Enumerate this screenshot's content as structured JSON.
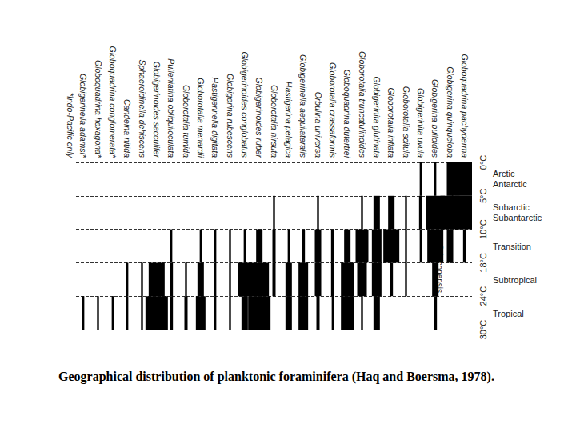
{
  "chart_data": {
    "type": "kite",
    "title": "Geographical distribution of planktonic foraminifera (Haq and Boersma, 1978).",
    "categories": [
      "Globigerinella adamsi*",
      "Globoquadrina hexagona*",
      "Globoquadrina conglomerata*",
      "Candeina nitida",
      "Sphaeroidinella dehiscens",
      "Globigerinoides sacculifer",
      "Pulleniatina obliquiloculata",
      "Globorotalia tumida",
      "Globorotalia menardii",
      "Hastigerinella digitata",
      "Globigerina rubescens",
      "Globigerinoides conglobatus",
      "Globigerinoides ruber",
      "Globorotalia hirsuta",
      "Hastigerina pelagica",
      "Globigerinella aequilateralis",
      "Orbulina universa",
      "Globorotalia crassaformis",
      "Globoquadrina dutertrei",
      "Globorotalia truncatulinoides",
      "Globigerinita glutinata",
      "Globorotalia inflata",
      "Globorotalia scitula",
      "Globigerinita uvula",
      "Globigerina bulloides",
      "Globigerina quinqueloba",
      "Globoquadrina pachyderma"
    ],
    "zones": [
      {
        "label": "Arctic\nAntarctic",
        "from": 0,
        "to": 1
      },
      {
        "label": "Subarctic\nSubantarctic",
        "from": 1,
        "to": 2
      },
      {
        "label": "Transition",
        "from": 2,
        "to": 3
      },
      {
        "label": "Subtropical",
        "from": 3,
        "to": 4
      },
      {
        "label": "Tropical",
        "from": 4,
        "to": 5
      }
    ],
    "values": [
      [
        0,
        0,
        0,
        0,
        0.3
      ],
      [
        0,
        0,
        0,
        0,
        0.3
      ],
      [
        0,
        0,
        0,
        0,
        0.3
      ],
      [
        0,
        0,
        0,
        0.3,
        0.3
      ],
      [
        0,
        0,
        0,
        0.3,
        0.3
      ],
      [
        0,
        0,
        0,
        2.5,
        3.5
      ],
      [
        0,
        0,
        0.3,
        0.5,
        0.5
      ],
      [
        0,
        0,
        0,
        0.3,
        0.5
      ],
      [
        0,
        0,
        0.3,
        1,
        1.5
      ],
      [
        0,
        0,
        0.3,
        0.3,
        0.3
      ],
      [
        0,
        0,
        0.3,
        0.3,
        0.3
      ],
      [
        0,
        0,
        0.3,
        2,
        1
      ],
      [
        0,
        0,
        1,
        3,
        3.5
      ],
      [
        0,
        0.3,
        0.5,
        0.5,
        0
      ],
      [
        0,
        0,
        0.3,
        1,
        1
      ],
      [
        0,
        0,
        0.5,
        1.5,
        1.5
      ],
      [
        0,
        0.3,
        1,
        1,
        0.5
      ],
      [
        0,
        0,
        0.5,
        0.5,
        0.3
      ],
      [
        0,
        0,
        1,
        2,
        2
      ],
      [
        0,
        0.3,
        2,
        1.5,
        0.3
      ],
      [
        0,
        1,
        1.5,
        1.5,
        1
      ],
      [
        0,
        1,
        2.5,
        0.5,
        0
      ],
      [
        0,
        0.3,
        0.3,
        0.3,
        0
      ],
      [
        0.3,
        0.5,
        0.3,
        0,
        0
      ],
      [
        0.3,
        3,
        2.5,
        1,
        0.5
      ],
      [
        1,
        3,
        1,
        0,
        0
      ],
      [
        4,
        3,
        0.5,
        0,
        0
      ]
    ],
    "color": "#000000",
    "ylim": [
      0,
      5
    ],
    "yticks": [
      {
        "value": 0,
        "label": "0°C"
      },
      {
        "value": 1,
        "label": "5°C"
      },
      {
        "value": 2,
        "label": "10°C"
      },
      {
        "value": 3,
        "label": "18°C"
      },
      {
        "value": 4,
        "label": "24°C"
      },
      {
        "value": 5,
        "label": "30°C"
      }
    ],
    "grid": true,
    "annotations": [
      {
        "text": "G falconensis",
        "category": "Globigerina bulloides",
        "y": 3.9
      },
      {
        "text": "*Indo-Pacific only"
      }
    ]
  }
}
